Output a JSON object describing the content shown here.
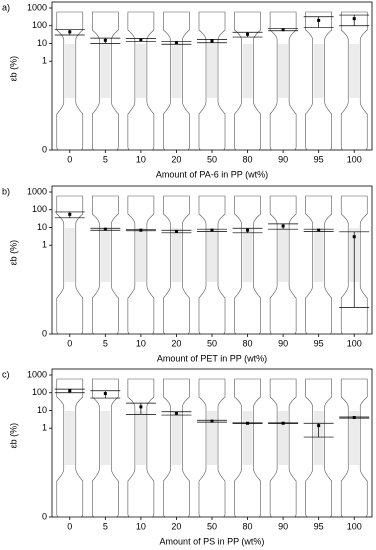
{
  "chart_data": [
    {
      "type": "errorbar",
      "panel_label": "a)",
      "y_label": "εb (%)",
      "x_label": "Amount of PA-6 in PP (wt%)",
      "yscale": "symlog",
      "categories": [
        "0",
        "5",
        "10",
        "20",
        "50",
        "80",
        "90",
        "95",
        "100"
      ],
      "values": [
        45,
        15,
        16,
        11,
        14,
        33,
        60,
        200,
        250
      ],
      "errors": [
        15,
        5,
        3,
        2,
        3,
        10,
        8,
        120,
        150
      ],
      "ylim": [
        0,
        1000
      ],
      "yticks": [
        0,
        1,
        10,
        100,
        1000
      ],
      "color": "#000000"
    },
    {
      "type": "errorbar",
      "panel_label": "b)",
      "y_label": "εb (%)",
      "x_label": "Amount of PET in PP (wt%)",
      "yscale": "symlog",
      "categories": [
        "0",
        "5",
        "10",
        "20",
        "50",
        "80",
        "90",
        "95",
        "100"
      ],
      "values": [
        55,
        8,
        7,
        6,
        7,
        7,
        12,
        7,
        3
      ],
      "errors": [
        20,
        1,
        0.5,
        1,
        1,
        2,
        4,
        1,
        2.7
      ],
      "ylim": [
        0,
        1000
      ],
      "yticks": [
        0,
        1,
        10,
        100,
        1000
      ],
      "color": "#000000"
    },
    {
      "type": "errorbar",
      "panel_label": "c)",
      "y_label": "εb (%)",
      "x_label": "Amount of PS in PP (wt%)",
      "yscale": "symlog",
      "categories": [
        "0",
        "5",
        "10",
        "20",
        "50",
        "80",
        "90",
        "95",
        "100"
      ],
      "values": [
        130,
        90,
        16,
        7,
        2.5,
        1.9,
        1.9,
        1.4,
        4
      ],
      "errors": [
        30,
        40,
        10,
        1.5,
        0.3,
        0.1,
        0.1,
        0.5,
        0.3
      ],
      "ylim": [
        0,
        1000
      ],
      "yticks": [
        0,
        1,
        10,
        100,
        1000
      ],
      "color": "#000000"
    }
  ]
}
